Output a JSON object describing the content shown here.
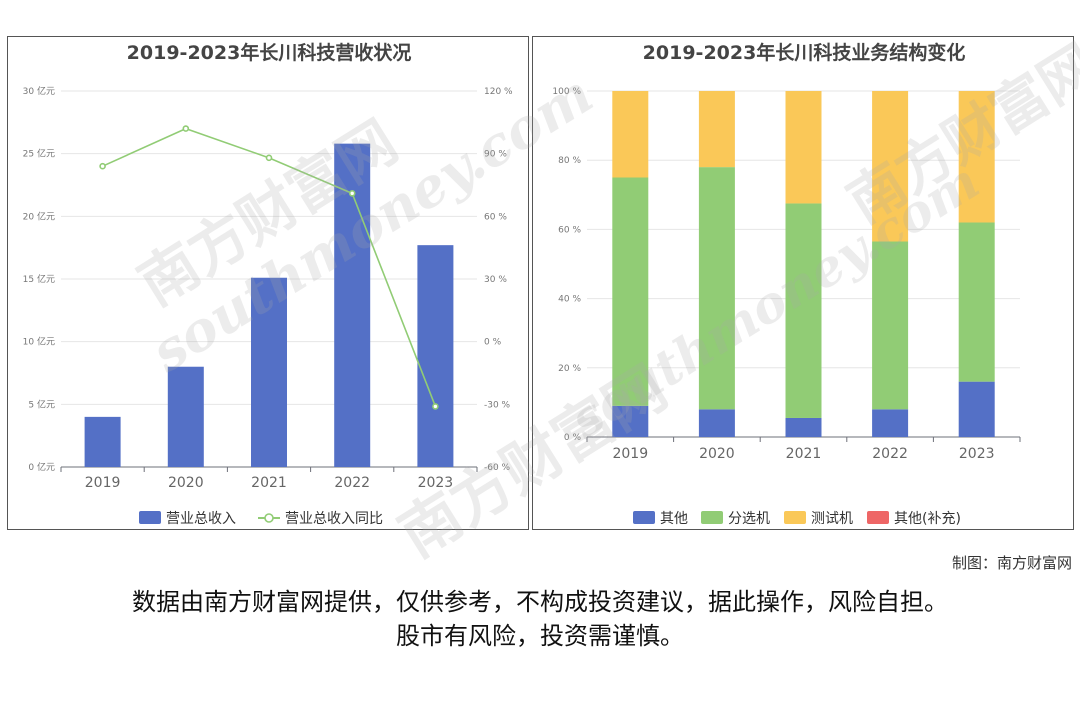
{
  "chart_data": [
    {
      "type": "bar",
      "title": "2019-2023年长川科技营收状况",
      "categories": [
        "2019",
        "2020",
        "2021",
        "2022",
        "2023"
      ],
      "series": [
        {
          "name": "营业总收入",
          "type": "bar",
          "axis": "left",
          "values": [
            4.0,
            8.0,
            15.1,
            25.8,
            17.7
          ],
          "color": "#5470c6"
        },
        {
          "name": "营业总收入同比",
          "type": "line",
          "axis": "right",
          "values": [
            84,
            102,
            88,
            71,
            -31
          ],
          "color": "#91cc75"
        }
      ],
      "y_left": {
        "ticks": [
          "0 亿元",
          "5 亿元",
          "10 亿元",
          "15 亿元",
          "20 亿元",
          "25 亿元",
          "30 亿元"
        ],
        "ylim": [
          0,
          30
        ]
      },
      "y_right": {
        "ticks": [
          "-60 %",
          "-30 %",
          "0 %",
          "30 %",
          "60 %",
          "90 %",
          "120 %"
        ],
        "ylim": [
          -60,
          120
        ]
      },
      "grid": true,
      "legend": "bottom"
    },
    {
      "type": "bar",
      "stacked": true,
      "title": "2019-2023年长川科技业务结构变化",
      "categories": [
        "2019",
        "2020",
        "2021",
        "2022",
        "2023"
      ],
      "series": [
        {
          "name": "其他",
          "values": [
            9,
            8,
            5.5,
            8,
            16
          ],
          "color": "#5470c6"
        },
        {
          "name": "分选机",
          "values": [
            66,
            70,
            62,
            48.5,
            46
          ],
          "color": "#91cc75"
        },
        {
          "name": "测试机",
          "values": [
            25,
            22,
            32.5,
            43.5,
            38
          ],
          "color": "#fac858"
        },
        {
          "name": "其他(补充)",
          "values": [
            0,
            0,
            0,
            0,
            0
          ],
          "color": "#ee6666"
        }
      ],
      "y": {
        "ticks": [
          "0 %",
          "20 %",
          "40 %",
          "60 %",
          "80 %",
          "100 %"
        ],
        "ylim": [
          0,
          100
        ]
      },
      "grid": true,
      "legend": "bottom"
    }
  ],
  "watermark": {
    "cn": "南方财富网",
    "en": "southmoney.com"
  },
  "credit": "制图：南方财富网",
  "disclaimer": {
    "line1": "数据由南方财富网提供，仅供参考，不构成投资建议，据此操作，风险自担。",
    "line2": "股市有风险，投资需谨慎。"
  }
}
